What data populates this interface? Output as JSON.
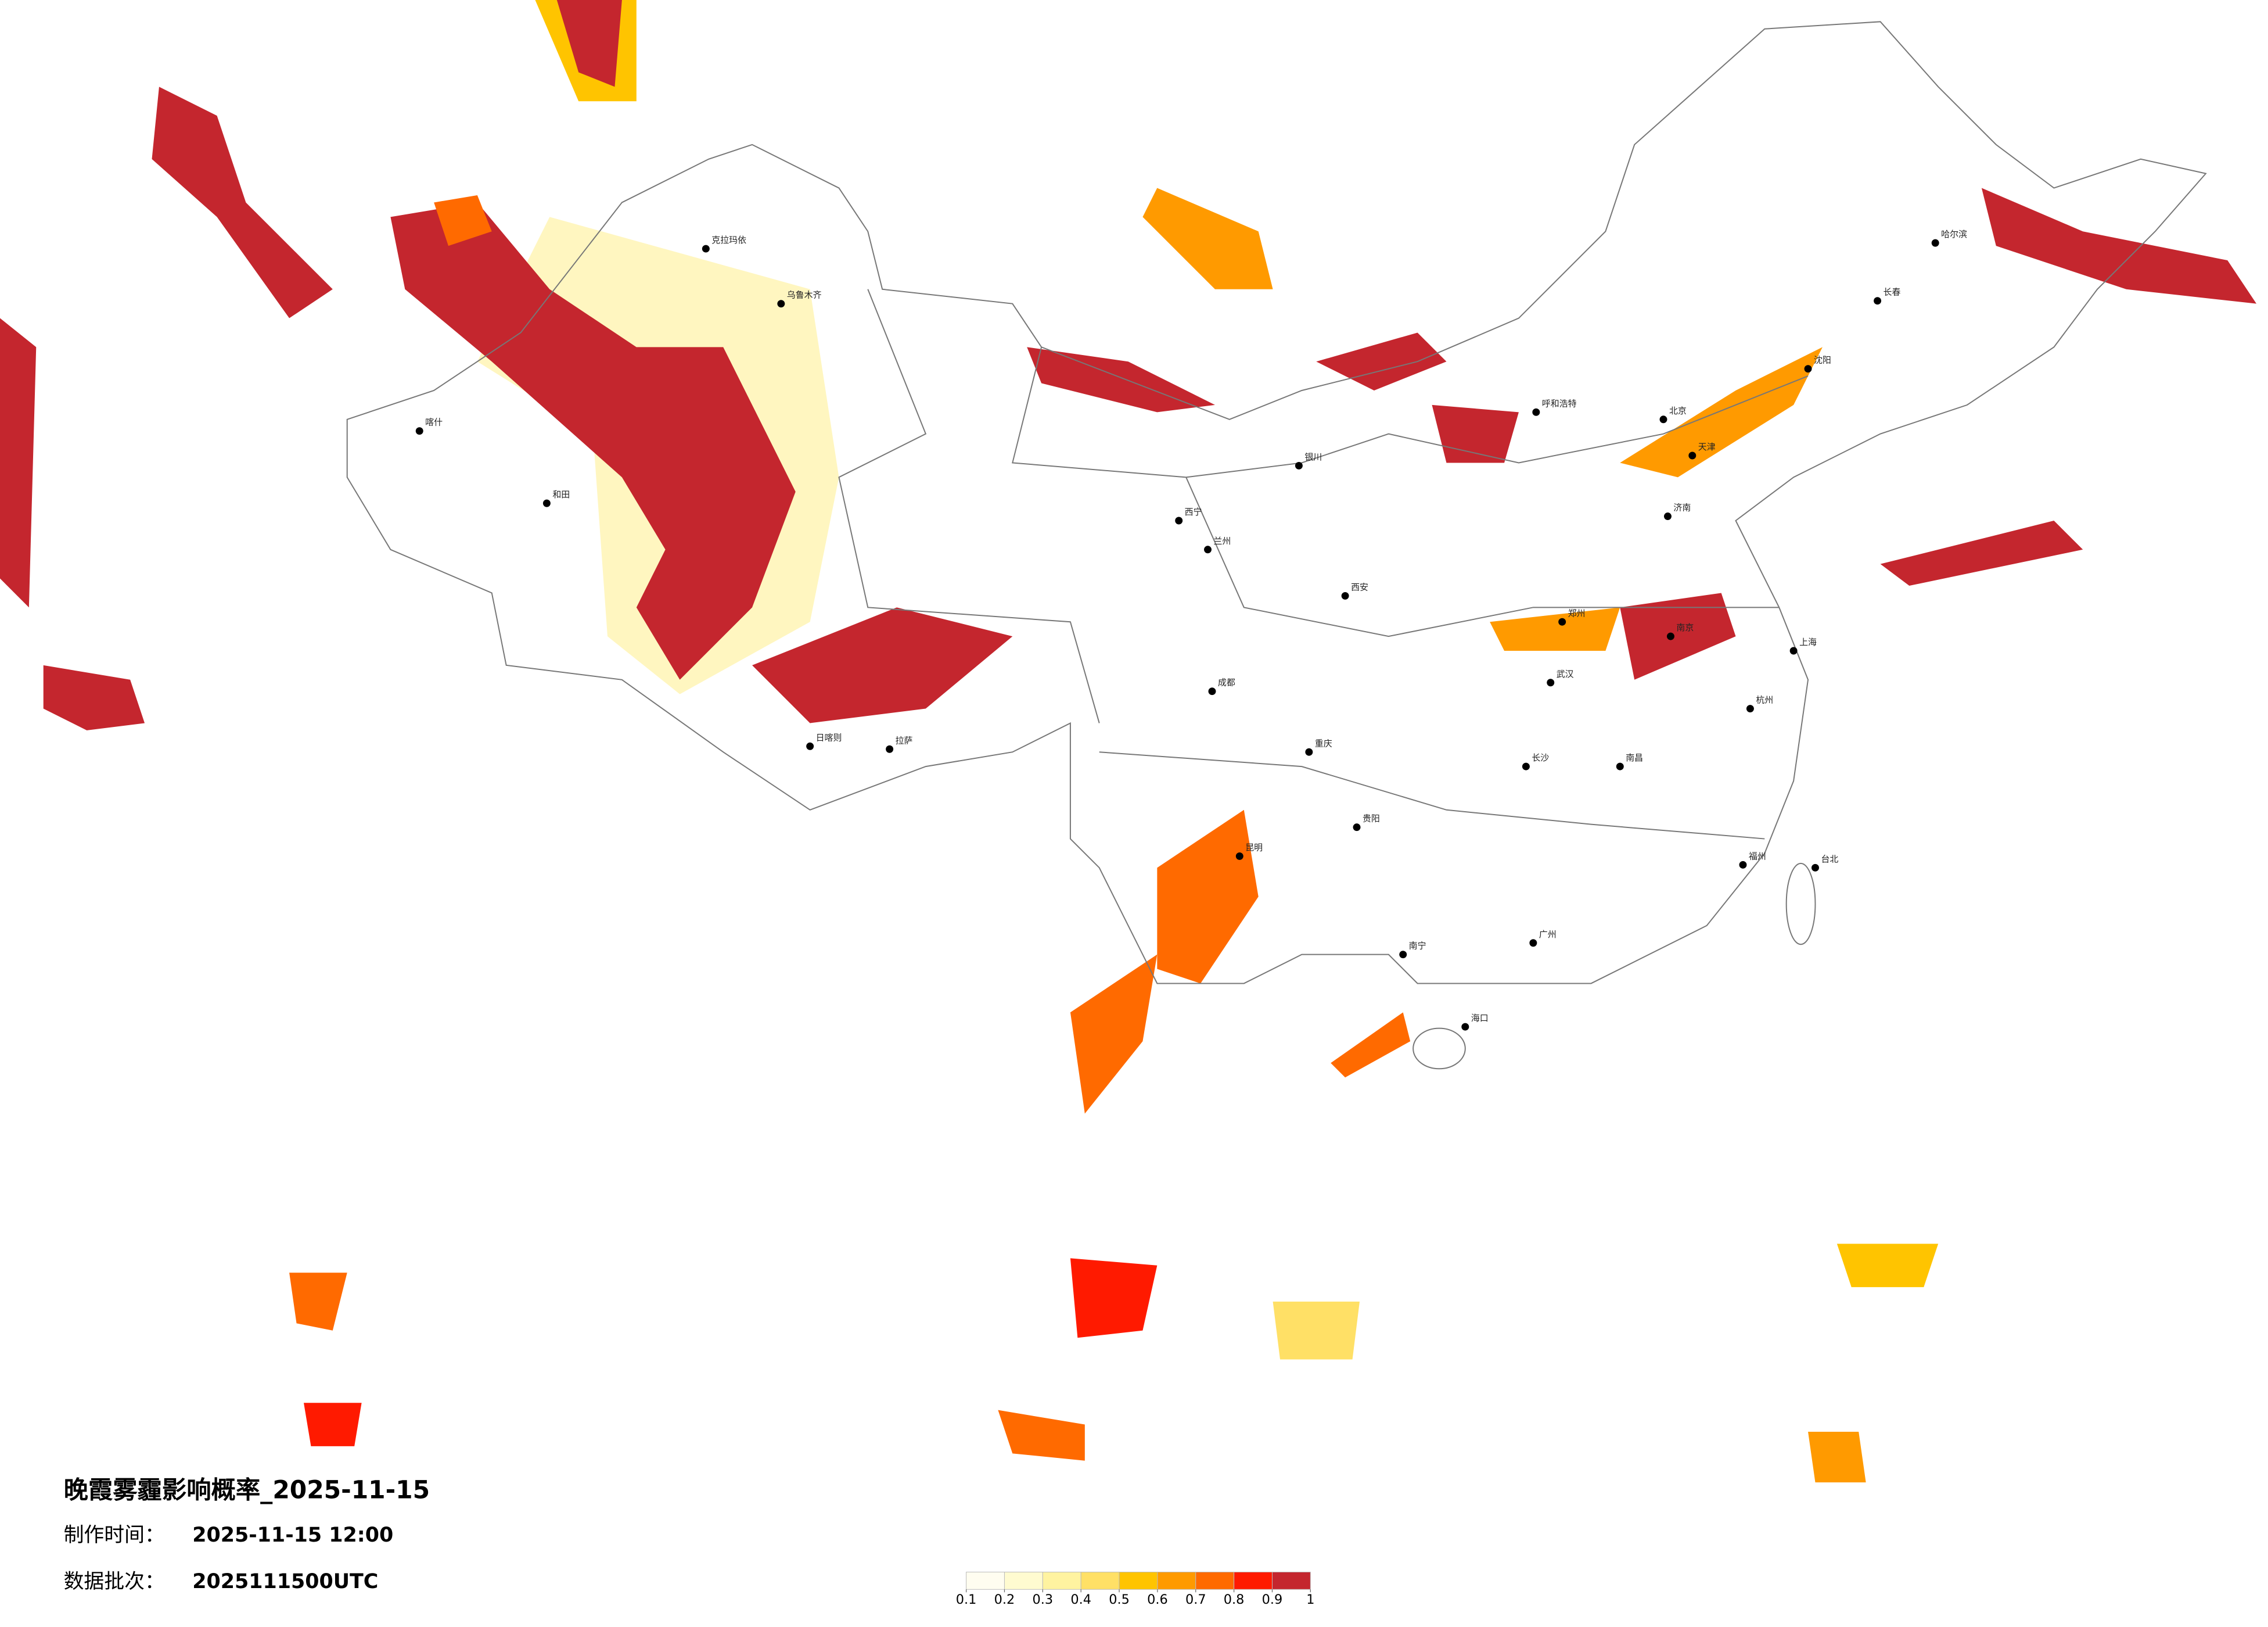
{
  "title": "晚霞雾霾影响概率_2025-11-15",
  "made_label": "制作时间：",
  "made_time": "2025-11-15 12:00",
  "batch_label": "数据批次：",
  "batch": "2025111500UTC",
  "legend": {
    "ticks": [
      0.1,
      0.2,
      0.3,
      0.4,
      0.5,
      0.6,
      0.7,
      0.8,
      0.9,
      1
    ],
    "colors": [
      "#fffdf0",
      "#fffbd0",
      "#fff3a0",
      "#ffe066",
      "#ffc400",
      "#ff9a00",
      "#ff6a00",
      "#ff1a00",
      "#c4262e"
    ]
  },
  "cities": [
    "克拉玛依",
    "乌鲁木齐",
    "和田",
    "喀什",
    "拉萨",
    "日喀则",
    "西宁",
    "兰州",
    "银川",
    "呼和浩特",
    "北京",
    "天津",
    "沈阳",
    "长春",
    "哈尔滨",
    "济南",
    "郑州",
    "西安",
    "成都",
    "重庆",
    "武汉",
    "南京",
    "上海",
    "杭州",
    "长沙",
    "南昌",
    "福州",
    "广州",
    "南宁",
    "昆明",
    "贵阳",
    "海口",
    "台北"
  ]
}
